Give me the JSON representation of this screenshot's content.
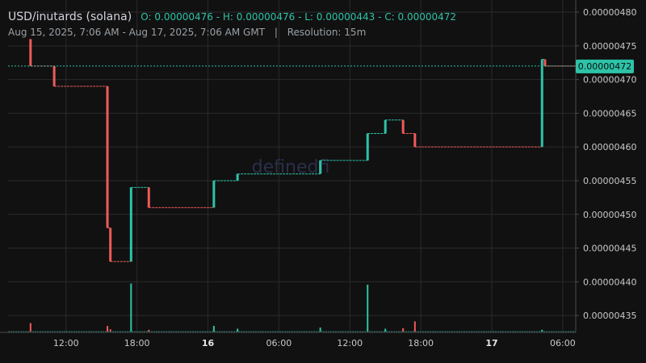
{
  "header": {
    "title": "USD/inutards (solana)",
    "ohlc": "O: 0.00000476 - H: 0.00000476 - L: 0.00000443 - C: 0.00000472",
    "range": "Aug 15, 2025, 7:06 AM - Aug 17, 2025, 7:06 AM GMT",
    "separator": "|",
    "resolution": "Resolution: 15m"
  },
  "watermark": "definedfi",
  "colors": {
    "up": "#2dc3a8",
    "down": "#f05a5a",
    "background": "#111111",
    "grid": "#2a2a2a",
    "text": "#c8c8c8"
  },
  "chart_data": {
    "type": "candlestick",
    "ylim": [
      4.325e-06,
      4.818e-06
    ],
    "y_ticks": [
      4.8e-06,
      4.75e-06,
      4.7e-06,
      4.65e-06,
      4.6e-06,
      4.55e-06,
      4.5e-06,
      4.45e-06,
      4.4e-06,
      4.35e-06
    ],
    "y_tick_labels": [
      "0.00000480",
      "0.00000475",
      "0.00000470",
      "0.00000465",
      "0.00000460",
      "0.00000455",
      "0.00000450",
      "0.00000445",
      "0.00000440",
      "0.00000435"
    ],
    "x_range": [
      "2025-08-15T07:06",
      "2025-08-17T07:06"
    ],
    "x_ticks": [
      "2025-08-15T12:00",
      "2025-08-15T18:00",
      "2025-08-16T00:00",
      "2025-08-16T06:00",
      "2025-08-16T12:00",
      "2025-08-16T18:00",
      "2025-08-17T00:00",
      "2025-08-17T06:00"
    ],
    "x_tick_labels": [
      "12:00",
      "18:00",
      "16",
      "06:00",
      "12:00",
      "18:00",
      "17",
      "06:00"
    ],
    "bold_x_ticks": [
      "16",
      "17"
    ],
    "last_price": 4.72e-06,
    "last_price_label": "0.00000472",
    "grid": true,
    "candles": [
      {
        "t": "2025-08-15T09:00",
        "o": 4.76e-06,
        "c": 4.72e-06
      },
      {
        "t": "2025-08-15T11:00",
        "o": 4.72e-06,
        "c": 4.69e-06
      },
      {
        "t": "2025-08-15T15:30",
        "o": 4.69e-06,
        "c": 4.48e-06
      },
      {
        "t": "2025-08-15T15:45",
        "o": 4.48e-06,
        "c": 4.43e-06
      },
      {
        "t": "2025-08-15T17:30",
        "o": 4.43e-06,
        "c": 4.54e-06
      },
      {
        "t": "2025-08-15T19:00",
        "o": 4.54e-06,
        "c": 4.51e-06
      },
      {
        "t": "2025-08-16T00:30",
        "o": 4.51e-06,
        "c": 4.55e-06
      },
      {
        "t": "2025-08-16T02:30",
        "o": 4.55e-06,
        "c": 4.56e-06
      },
      {
        "t": "2025-08-16T09:30",
        "o": 4.56e-06,
        "c": 4.58e-06
      },
      {
        "t": "2025-08-16T13:30",
        "o": 4.58e-06,
        "c": 4.62e-06
      },
      {
        "t": "2025-08-16T15:00",
        "o": 4.62e-06,
        "c": 4.64e-06
      },
      {
        "t": "2025-08-16T16:30",
        "o": 4.64e-06,
        "c": 4.62e-06
      },
      {
        "t": "2025-08-16T17:30",
        "o": 4.62e-06,
        "c": 4.6e-06
      },
      {
        "t": "2025-08-17T04:15",
        "o": 4.6e-06,
        "c": 4.73e-06
      },
      {
        "t": "2025-08-17T04:30",
        "o": 4.73e-06,
        "c": 4.72e-06
      }
    ],
    "volume_bars": [
      {
        "t": "2025-08-15T09:00",
        "v": 0.15,
        "dir": "down"
      },
      {
        "t": "2025-08-15T15:30",
        "v": 0.1,
        "dir": "down"
      },
      {
        "t": "2025-08-15T15:45",
        "v": 0.04,
        "dir": "down"
      },
      {
        "t": "2025-08-15T17:30",
        "v": 0.85,
        "dir": "up"
      },
      {
        "t": "2025-08-15T19:00",
        "v": 0.03,
        "dir": "down"
      },
      {
        "t": "2025-08-16T00:30",
        "v": 0.1,
        "dir": "up"
      },
      {
        "t": "2025-08-16T02:30",
        "v": 0.05,
        "dir": "up"
      },
      {
        "t": "2025-08-16T09:30",
        "v": 0.07,
        "dir": "up"
      },
      {
        "t": "2025-08-16T13:30",
        "v": 0.83,
        "dir": "up"
      },
      {
        "t": "2025-08-16T15:00",
        "v": 0.05,
        "dir": "up"
      },
      {
        "t": "2025-08-16T16:30",
        "v": 0.06,
        "dir": "down"
      },
      {
        "t": "2025-08-16T17:30",
        "v": 0.18,
        "dir": "down"
      },
      {
        "t": "2025-08-17T04:15",
        "v": 0.03,
        "dir": "up"
      }
    ]
  }
}
